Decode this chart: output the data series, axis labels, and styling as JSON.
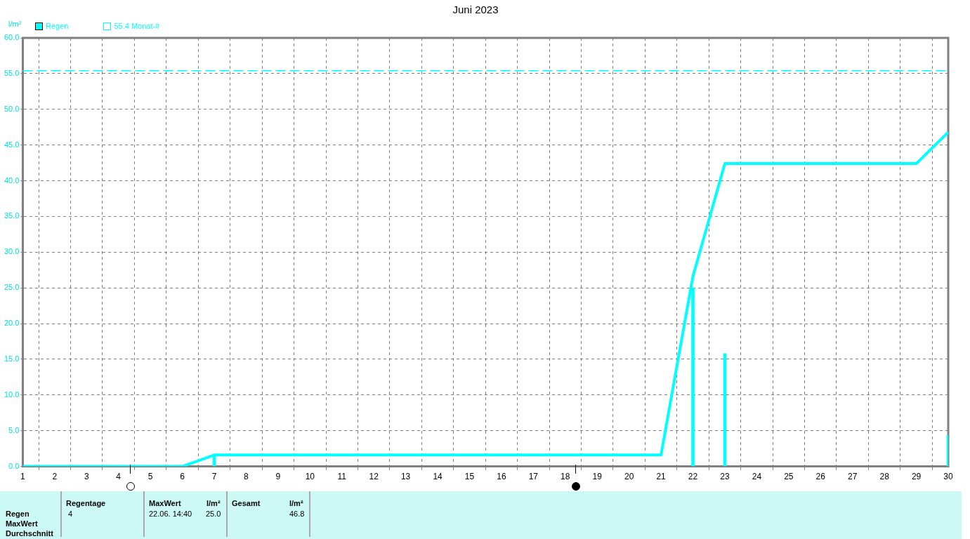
{
  "chart_data": {
    "type": "line",
    "title": "Juni 2023",
    "ylabel": "l/m²",
    "xlim": [
      1,
      30
    ],
    "xticks": [
      1,
      2,
      3,
      4,
      5,
      6,
      7,
      8,
      9,
      10,
      11,
      12,
      13,
      14,
      15,
      16,
      17,
      18,
      19,
      20,
      21,
      22,
      23,
      24,
      25,
      26,
      27,
      28,
      29,
      30
    ],
    "ylim": [
      0,
      60
    ],
    "yticks": [
      {
        "value": 0,
        "label": "0.0"
      },
      {
        "value": 5,
        "label": "5.0"
      },
      {
        "value": 10,
        "label": "10.0"
      },
      {
        "value": 15,
        "label": "15.0"
      },
      {
        "value": 20,
        "label": "20.0"
      },
      {
        "value": 25,
        "label": "25.0"
      },
      {
        "value": 30,
        "label": "30.0"
      },
      {
        "value": 35,
        "label": "35.0"
      },
      {
        "value": 40,
        "label": "40.0"
      },
      {
        "value": 45,
        "label": "45.0"
      },
      {
        "value": 50,
        "label": "50.0"
      },
      {
        "value": 55,
        "label": "55.0"
      },
      {
        "value": 60,
        "label": "60.0"
      }
    ],
    "series": [
      {
        "name": "Regen",
        "type": "bar",
        "color": "#00ffff",
        "x": [
          7,
          22,
          23,
          30
        ],
        "values": [
          1.6,
          25.0,
          15.8,
          4.4
        ]
      },
      {
        "color": "#00ffff",
        "x": [
          1,
          6,
          7,
          21,
          22,
          23,
          29,
          30
        ],
        "values": [
          0,
          0,
          1.6,
          1.6,
          26.6,
          42.4,
          42.4,
          46.8
        ]
      }
    ],
    "ref_lines": [
      {
        "axis": "y",
        "value": 55.4,
        "label": "55.4 Monat-#",
        "color": "#00ffff",
        "line_style": "dashed"
      }
    ],
    "grid": true,
    "legend": "top left",
    "marker": "none",
    "line_style": "solid",
    "annotations": [
      "Regen",
      "MaxWert",
      "Durchschnitt",
      "Regentage",
      "4",
      "MaxWert",
      "l/m²",
      "22.06.  14:40",
      "25.0",
      "Gesamt",
      "l/m²",
      "46.8"
    ]
  }
}
